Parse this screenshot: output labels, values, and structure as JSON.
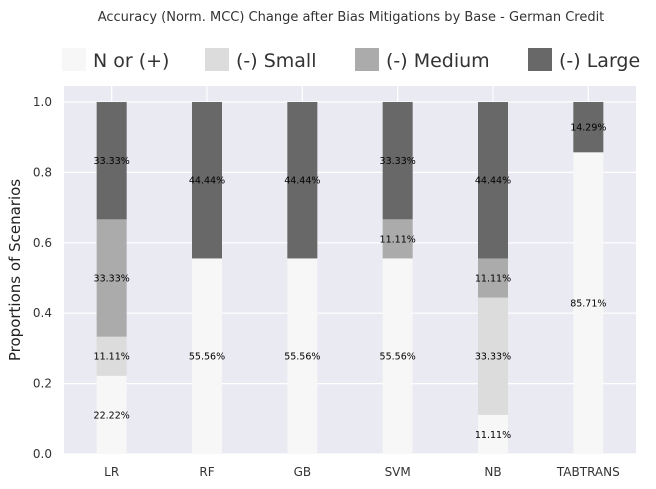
{
  "chart_data": {
    "type": "bar",
    "stacked": true,
    "title": "Accuracy (Norm. MCC) Change after Bias Mitigations by Base - German Credit",
    "xlabel": "",
    "ylabel": "Proportions of Scenarios",
    "ylim": [
      0,
      1.05
    ],
    "yticks": [
      "0.0",
      "0.2",
      "0.4",
      "0.6",
      "0.8",
      "1.0"
    ],
    "ytick_values": [
      0,
      0.2,
      0.4,
      0.6,
      0.8,
      1.0
    ],
    "grid": true,
    "legend_position": "top",
    "categories": [
      "LR",
      "RF",
      "GB",
      "SVM",
      "NB",
      "TABTRANS"
    ],
    "series": [
      {
        "name": "N or (+)",
        "color": "#f7f7f7",
        "values": [
          0.2222,
          0.5556,
          0.5556,
          0.5556,
          0.1111,
          0.8571
        ],
        "labels": [
          "22.22%",
          "55.56%",
          "55.56%",
          "55.56%",
          "11.11%",
          "85.71%"
        ]
      },
      {
        "name": "(-) Small",
        "color": "#dcdcdc",
        "values": [
          0.1111,
          0,
          0,
          0,
          0.3333,
          0
        ],
        "labels": [
          "11.11%",
          "",
          "",
          "",
          "33.33%",
          ""
        ]
      },
      {
        "name": "(-) Medium",
        "color": "#ababab",
        "values": [
          0.3333,
          0,
          0,
          0.1111,
          0.1111,
          0
        ],
        "labels": [
          "33.33%",
          "",
          "",
          "11.11%",
          "11.11%",
          ""
        ]
      },
      {
        "name": "(-) Large",
        "color": "#686868",
        "values": [
          0.3333,
          0.4444,
          0.4444,
          0.3333,
          0.4444,
          0.1429
        ],
        "labels": [
          "33.33%",
          "44.44%",
          "44.44%",
          "33.33%",
          "44.44%",
          "14.29%"
        ]
      }
    ]
  }
}
